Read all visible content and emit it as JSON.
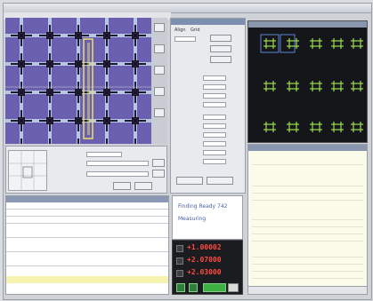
{
  "window": {
    "title": ""
  },
  "menu": {
    "items": [
      "",
      "",
      "",
      "",
      "",
      "",
      ""
    ]
  },
  "measure_panel": {
    "tabs": [
      "Align",
      "Grid"
    ],
    "buttons": [
      "",
      ""
    ]
  },
  "status": {
    "line1": "Finding Ready 742",
    "line2": "Measuring"
  },
  "readout": {
    "x": "+1.00002",
    "y": "+2.07000",
    "z": "+2.03000"
  },
  "colors": {
    "micro_bg": "#6b5fb0",
    "grid_lines": "#b9c6e6",
    "crosshair": "#9ee050",
    "readout_text": "#ff4a40",
    "highlight": "#e8e06a"
  }
}
